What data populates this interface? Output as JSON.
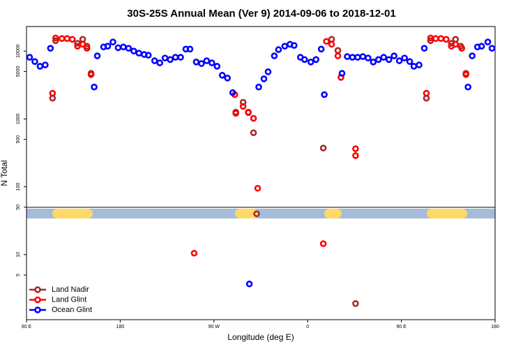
{
  "chart_data": {
    "type": "scatter",
    "title": "30S-25S Annual Mean (Ver 9)   2014-09-06 to 2018-12-01",
    "xlabel": "Longitude (deg E)",
    "ylabel": "N Total",
    "xlim": [
      90,
      540
    ],
    "xticks": [
      {
        "value": 90,
        "label": "90 E"
      },
      {
        "value": 180,
        "label": "180"
      },
      {
        "value": 270,
        "label": "90 W"
      },
      {
        "value": 360,
        "label": "0"
      },
      {
        "value": 450,
        "label": "90 E"
      },
      {
        "value": 540,
        "label": "180"
      }
    ],
    "ylim": [
      1.1,
      23000
    ],
    "yticks": [
      5,
      10,
      50,
      100,
      500,
      1000,
      5000,
      10000
    ],
    "log_y": true,
    "legend": "bottom-left",
    "series": [
      {
        "name": "Land Nadir",
        "color": "#a52a2a",
        "x": [
          115,
          118,
          139,
          144,
          148,
          152,
          291,
          298,
          303,
          308,
          311,
          375,
          383,
          389,
          406,
          474,
          478,
          498,
          502,
          507,
          512
        ],
        "values": [
          2020,
          14200,
          13000,
          14900,
          11800,
          4700,
          1260,
          1760,
          1240,
          625,
          40,
          372,
          14900,
          10200,
          1.9,
          2020,
          14200,
          13000,
          14900,
          11800,
          4700
        ]
      },
      {
        "name": "Land Glint",
        "color": "#ff0000",
        "x": [
          115,
          118,
          124,
          129,
          134,
          139,
          144,
          148,
          152,
          251,
          290,
          291,
          298,
          303,
          308,
          312,
          375,
          378,
          383,
          389,
          392,
          406,
          406,
          474,
          478,
          483,
          488,
          493,
          498,
          502,
          508,
          512
        ],
        "values": [
          2390,
          15600,
          15300,
          15300,
          14900,
          11800,
          12600,
          11000,
          4500,
          10.5,
          2280,
          1210,
          1530,
          1260,
          1020,
          95,
          14.5,
          13900,
          12600,
          8500,
          4100,
          364,
          288,
          2390,
          15600,
          15300,
          15300,
          14900,
          11800,
          12600,
          11000,
          4500
        ]
      },
      {
        "name": "Ocean Glint",
        "color": "#0000ff",
        "x": [
          93,
          98,
          103,
          108,
          113,
          155,
          158,
          164,
          168,
          173,
          178,
          183,
          188,
          193,
          198,
          203,
          207,
          213,
          218,
          223,
          228,
          233,
          238,
          243,
          247,
          253,
          258,
          263,
          268,
          273,
          278,
          283,
          288,
          304,
          313,
          318,
          322,
          328,
          332,
          338,
          343,
          347,
          353,
          357,
          363,
          368,
          373,
          376,
          393,
          398,
          403,
          408,
          413,
          418,
          423,
          428,
          433,
          438,
          443,
          448,
          453,
          458,
          462,
          467,
          472,
          514,
          518,
          523,
          527,
          533,
          537
        ],
        "values": [
          8100,
          7000,
          5970,
          6250,
          11000,
          2950,
          8500,
          11500,
          11800,
          13600,
          11200,
          11500,
          11000,
          10000,
          9300,
          8900,
          8700,
          7200,
          6700,
          7900,
          7500,
          8100,
          8100,
          10700,
          10700,
          6900,
          6550,
          7200,
          6700,
          5970,
          4400,
          4000,
          2440,
          3.7,
          2950,
          3900,
          4950,
          8500,
          10500,
          11800,
          12600,
          12100,
          8100,
          7500,
          6900,
          7500,
          10700,
          2280,
          4700,
          8300,
          8100,
          8100,
          8300,
          7900,
          6900,
          7500,
          8100,
          7500,
          8500,
          7200,
          7900,
          7000,
          5970,
          6250,
          11000,
          2950,
          8500,
          11500,
          11800,
          13600,
          11000
        ]
      }
    ]
  }
}
